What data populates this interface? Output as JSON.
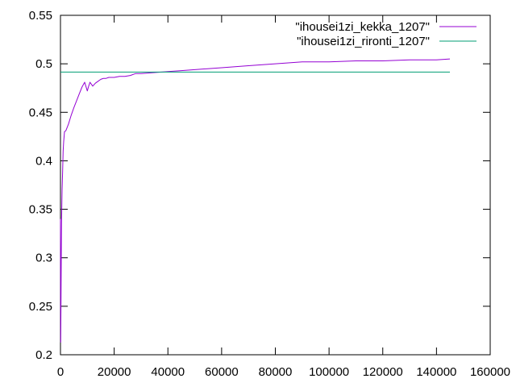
{
  "chart_data": {
    "type": "line",
    "title": "",
    "xlabel": "",
    "ylabel": "",
    "xlim": [
      0,
      160000
    ],
    "ylim": [
      0.2,
      0.55
    ],
    "xticks": [
      0,
      20000,
      40000,
      60000,
      80000,
      100000,
      120000,
      140000,
      160000
    ],
    "xtick_labels": [
      "0",
      "20000",
      "40000",
      "60000",
      "80000",
      "100000",
      "120000",
      "140000",
      "160000"
    ],
    "yticks": [
      0.2,
      0.25,
      0.3,
      0.35,
      0.4,
      0.45,
      0.5,
      0.55
    ],
    "ytick_labels": [
      "0.2",
      "0.25",
      "0.3",
      "0.35",
      "0.4",
      "0.45",
      "0.5",
      "0.55"
    ],
    "grid": false,
    "legend_position": "top-right",
    "series": [
      {
        "name": "\"ihousei1zi_kekka_1207\"",
        "color": "#9400d3",
        "x": [
          0,
          100,
          200,
          300,
          400,
          600,
          800,
          1000,
          1200,
          1500,
          2000,
          3000,
          4000,
          5000,
          6000,
          7000,
          8000,
          9000,
          10000,
          10500,
          11000,
          11500,
          12000,
          13000,
          14000,
          15000,
          16000,
          17000,
          18000,
          20000,
          22000,
          24000,
          26000,
          28000,
          30000,
          35000,
          40000,
          45000,
          50000,
          60000,
          70000,
          80000,
          90000,
          100000,
          110000,
          120000,
          130000,
          140000,
          145000
        ],
        "y": [
          0.34,
          0.213,
          0.26,
          0.3,
          0.335,
          0.37,
          0.39,
          0.41,
          0.42,
          0.43,
          0.431,
          0.438,
          0.447,
          0.455,
          0.462,
          0.469,
          0.476,
          0.481,
          0.472,
          0.477,
          0.481,
          0.479,
          0.477,
          0.48,
          0.482,
          0.484,
          0.485,
          0.485,
          0.486,
          0.486,
          0.487,
          0.487,
          0.488,
          0.49,
          0.49,
          0.491,
          0.492,
          0.493,
          0.494,
          0.496,
          0.498,
          0.5,
          0.502,
          0.502,
          0.503,
          0.503,
          0.504,
          0.504,
          0.505
        ]
      },
      {
        "name": "\"ihousei1zi_rironti_1207\"",
        "color": "#009e73",
        "x": [
          0,
          145000
        ],
        "y": [
          0.4915,
          0.4915
        ]
      }
    ]
  }
}
